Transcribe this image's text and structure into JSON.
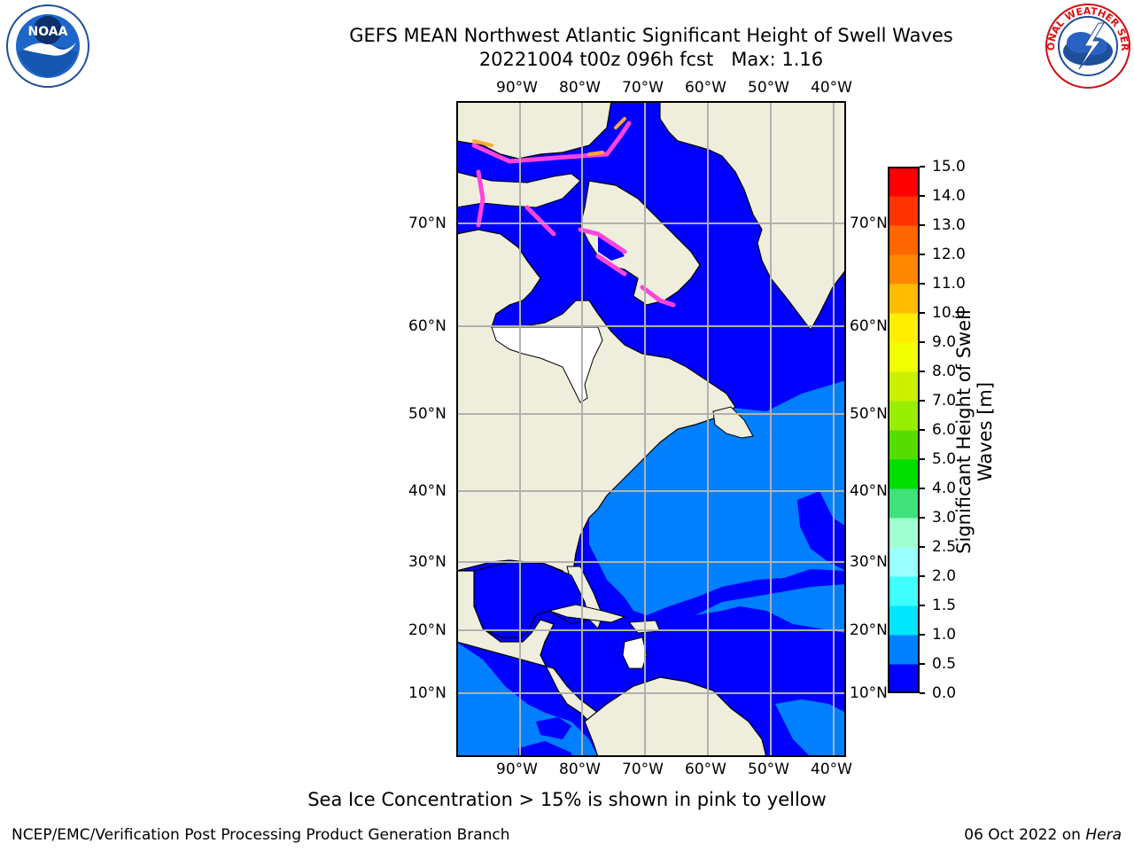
{
  "header": {
    "title_line1": "GEFS MEAN Northwest Atlantic Significant Height of Swell Waves",
    "title_line2": "20221004 t00z 096h fcst   Max: 1.16"
  },
  "logos": {
    "left": {
      "icon": "noaa-logo-icon",
      "text": "NOAA"
    },
    "right": {
      "icon": "nws-logo-icon",
      "text": "NATIONAL WEATHER SERVICE"
    }
  },
  "map": {
    "lon_labels": [
      "90°W",
      "80°W",
      "70°W",
      "60°W",
      "50°W",
      "40°W"
    ],
    "lat_labels": [
      "70°N",
      "60°N",
      "50°N",
      "40°N",
      "30°N",
      "20°N",
      "10°N"
    ],
    "colors": {
      "land": "#efeedd",
      "ocean_low": "#0000ff",
      "ocean_mid": "#0080ff",
      "ice": "#ff44dd",
      "grid": "#b0b0b0"
    }
  },
  "colorbar": {
    "label": "Significant Height of Swell Waves [m]",
    "ticks": [
      "0.0",
      "0.5",
      "1.0",
      "1.5",
      "2.0",
      "2.5",
      "3.0",
      "4.0",
      "5.0",
      "6.0",
      "7.0",
      "8.0",
      "9.0",
      "10.0",
      "11.0",
      "12.0",
      "13.0",
      "14.0",
      "15.0"
    ],
    "colors": [
      "#0000ff",
      "#0080ff",
      "#00e6ff",
      "#40ffff",
      "#99ffff",
      "#a0ffd0",
      "#40e07a",
      "#00dd00",
      "#55dd00",
      "#99ee00",
      "#ccf000",
      "#f0ff00",
      "#ffee00",
      "#ffbb00",
      "#ff8800",
      "#ff6600",
      "#ff3300",
      "#ff0000"
    ]
  },
  "notes": {
    "sea_ice": "Sea Ice Concentration > 15% is shown in pink to yellow"
  },
  "footer": {
    "left": "NCEP/EMC/Verification Post Processing Product Generation Branch",
    "date": "06 Oct 2022 on ",
    "machine": "Hera"
  }
}
